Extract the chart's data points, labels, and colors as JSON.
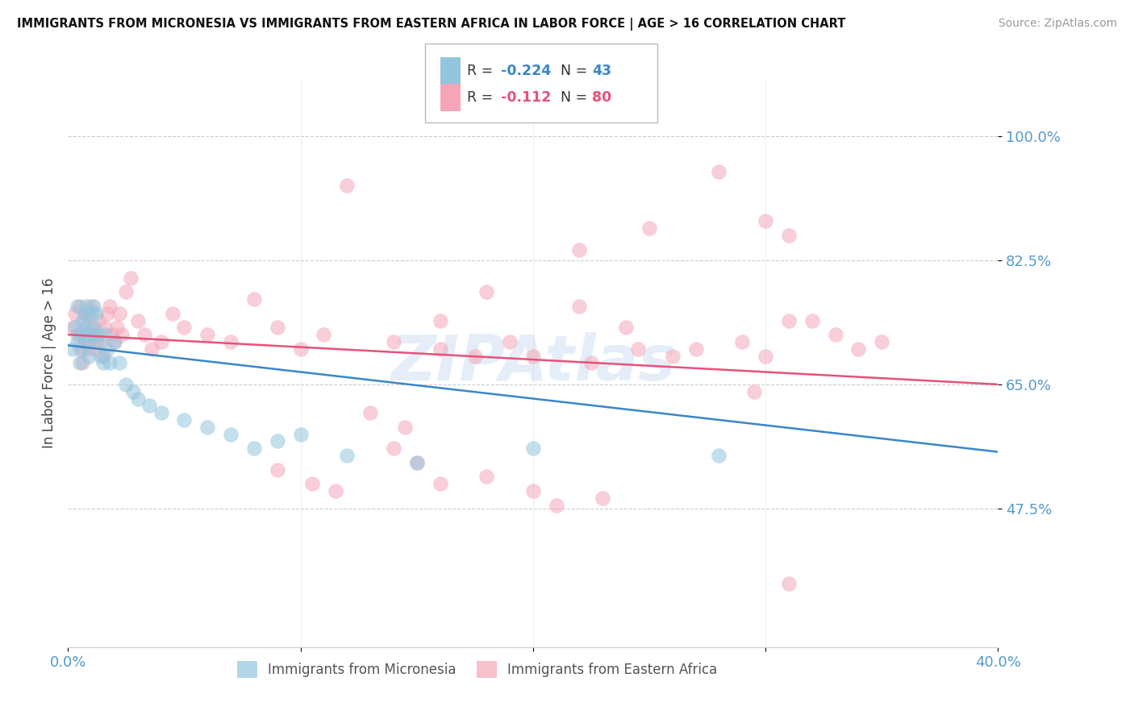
{
  "title": "IMMIGRANTS FROM MICRONESIA VS IMMIGRANTS FROM EASTERN AFRICA IN LABOR FORCE | AGE > 16 CORRELATION CHART",
  "source": "Source: ZipAtlas.com",
  "ylabel": "In Labor Force | Age > 16",
  "ytick_labels": [
    "100.0%",
    "82.5%",
    "65.0%",
    "47.5%"
  ],
  "ytick_values": [
    1.0,
    0.825,
    0.65,
    0.475
  ],
  "xlim": [
    0.0,
    0.4
  ],
  "ylim": [
    0.28,
    1.08
  ],
  "color_blue": "#92c5de",
  "color_pink": "#f4a6b8",
  "color_blue_line": "#3a86c8",
  "color_pink_line": "#e8517a",
  "color_axis_labels": "#5599cc",
  "watermark": "ZIPAtlas",
  "micronesia_x": [
    0.002,
    0.003,
    0.004,
    0.004,
    0.005,
    0.005,
    0.006,
    0.006,
    0.007,
    0.007,
    0.008,
    0.008,
    0.009,
    0.009,
    0.01,
    0.01,
    0.011,
    0.011,
    0.012,
    0.012,
    0.013,
    0.014,
    0.015,
    0.016,
    0.017,
    0.018,
    0.02,
    0.022,
    0.025,
    0.028,
    0.03,
    0.035,
    0.04,
    0.05,
    0.06,
    0.07,
    0.08,
    0.09,
    0.1,
    0.12,
    0.15,
    0.2,
    0.28
  ],
  "micronesia_y": [
    0.7,
    0.73,
    0.71,
    0.76,
    0.72,
    0.68,
    0.74,
    0.7,
    0.75,
    0.72,
    0.76,
    0.73,
    0.69,
    0.71,
    0.75,
    0.72,
    0.76,
    0.73,
    0.71,
    0.75,
    0.72,
    0.69,
    0.68,
    0.72,
    0.7,
    0.68,
    0.71,
    0.68,
    0.65,
    0.64,
    0.63,
    0.62,
    0.61,
    0.6,
    0.59,
    0.58,
    0.56,
    0.57,
    0.58,
    0.55,
    0.54,
    0.56,
    0.55
  ],
  "eastern_africa_x": [
    0.002,
    0.003,
    0.004,
    0.005,
    0.005,
    0.006,
    0.007,
    0.007,
    0.008,
    0.008,
    0.009,
    0.01,
    0.01,
    0.011,
    0.012,
    0.013,
    0.014,
    0.015,
    0.016,
    0.017,
    0.018,
    0.019,
    0.02,
    0.021,
    0.022,
    0.023,
    0.025,
    0.027,
    0.03,
    0.033,
    0.036,
    0.04,
    0.045,
    0.05,
    0.06,
    0.07,
    0.08,
    0.09,
    0.1,
    0.11,
    0.12,
    0.14,
    0.16,
    0.18,
    0.2,
    0.22,
    0.24,
    0.27,
    0.28,
    0.29,
    0.3,
    0.31,
    0.32,
    0.33,
    0.34,
    0.35,
    0.3,
    0.31,
    0.22,
    0.25,
    0.16,
    0.175,
    0.19,
    0.16,
    0.18,
    0.2,
    0.14,
    0.15,
    0.21,
    0.23,
    0.13,
    0.145,
    0.09,
    0.105,
    0.115,
    0.225,
    0.245,
    0.26,
    0.295,
    0.31
  ],
  "eastern_africa_y": [
    0.73,
    0.75,
    0.72,
    0.7,
    0.76,
    0.68,
    0.74,
    0.71,
    0.75,
    0.72,
    0.7,
    0.73,
    0.76,
    0.72,
    0.7,
    0.74,
    0.71,
    0.69,
    0.73,
    0.75,
    0.76,
    0.72,
    0.71,
    0.73,
    0.75,
    0.72,
    0.78,
    0.8,
    0.74,
    0.72,
    0.7,
    0.71,
    0.75,
    0.73,
    0.72,
    0.71,
    0.77,
    0.73,
    0.7,
    0.72,
    0.93,
    0.71,
    0.74,
    0.78,
    0.69,
    0.76,
    0.73,
    0.7,
    0.95,
    0.71,
    0.69,
    0.74,
    0.74,
    0.72,
    0.7,
    0.71,
    0.88,
    0.86,
    0.84,
    0.87,
    0.7,
    0.69,
    0.71,
    0.51,
    0.52,
    0.5,
    0.56,
    0.54,
    0.48,
    0.49,
    0.61,
    0.59,
    0.53,
    0.51,
    0.5,
    0.68,
    0.7,
    0.69,
    0.64,
    0.37
  ]
}
